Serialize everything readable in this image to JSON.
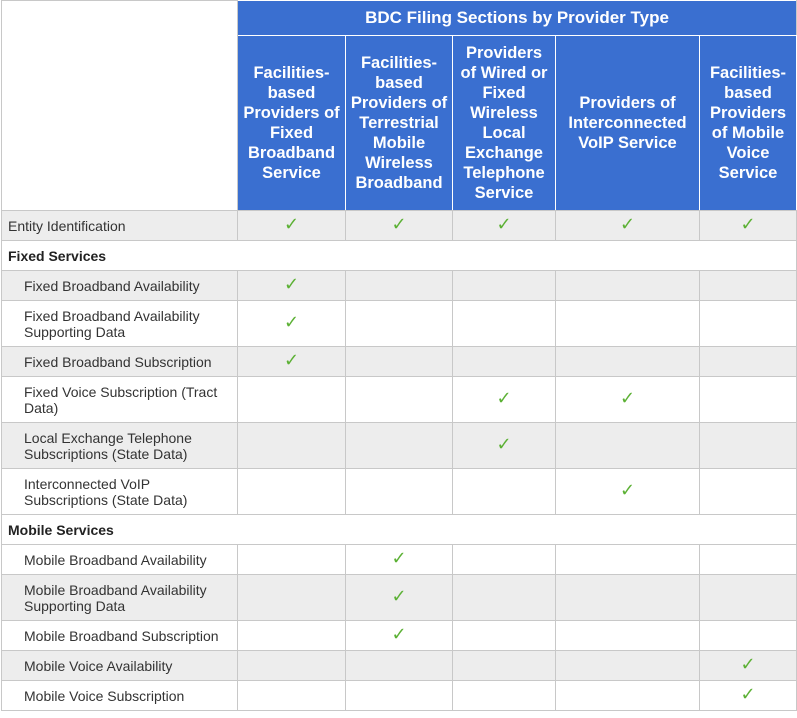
{
  "table": {
    "title": "BDC Filing Sections by Provider Type",
    "columns": [
      "Facilities-based Providers of Fixed Broadband Service",
      "Facilities-based Providers of Terrestrial Mobile Wireless Broadband",
      "Providers of Wired or Fixed Wireless Local Exchange Telephone Service",
      "Providers of Interconnected VoIP Service",
      "Facilities-based Providers of Mobile Voice Service"
    ],
    "check_symbol": "✓",
    "check_color": "#5cb135",
    "header_color": "#3a6fd0",
    "rows": {
      "entity_identification": "Entity Identification",
      "fixed_services": "Fixed Services",
      "fixed_broadband_availability": "Fixed Broadband Availability",
      "fixed_broadband_availability_supporting": "Fixed Broadband Availability Supporting Data",
      "fixed_broadband_subscription": "Fixed Broadband Subscription",
      "fixed_voice_subscription": "Fixed Voice Subscription (Tract Data)",
      "local_exchange_subscriptions": "Local Exchange Telephone Subscriptions (State Data)",
      "voip_subscriptions": "Interconnected VoIP Subscriptions (State Data)",
      "mobile_services": "Mobile Services",
      "mobile_broadband_availability": "Mobile Broadband Availability",
      "mobile_broadband_availability_supporting": "Mobile Broadband Availability Supporting Data",
      "mobile_broadband_subscription": "Mobile Broadband Subscription",
      "mobile_voice_availability": "Mobile Voice Availability",
      "mobile_voice_subscription": "Mobile Voice Subscription"
    }
  }
}
